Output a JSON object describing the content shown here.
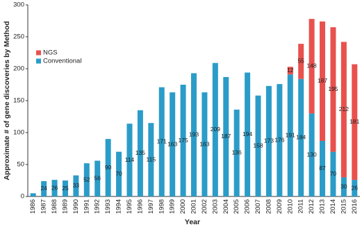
{
  "chart_data": {
    "type": "stacked_bar",
    "x_label": "Year",
    "y_label": "Approximate # of gene discoveries by Method",
    "categories": [
      "1986",
      "1987",
      "1988",
      "1989",
      "1990",
      "1991",
      "1992",
      "1993",
      "1994",
      "1995",
      "1996",
      "1997",
      "1998",
      "1999",
      "2000",
      "2001",
      "2002",
      "2003",
      "2004",
      "2005",
      "2006",
      "2007",
      "2008",
      "2009",
      "2010",
      "2011",
      "2012",
      "2013",
      "2014",
      "2015",
      "2016"
    ],
    "series": [
      {
        "name": "Conventional",
        "color": "#2b9cc8",
        "values": [
          5,
          24,
          26,
          25,
          33,
          52,
          56,
          90,
          70,
          114,
          135,
          115,
          171,
          163,
          175,
          193,
          163,
          209,
          187,
          136,
          194,
          158,
          173,
          176,
          191,
          184,
          130,
          87,
          70,
          30,
          26
        ],
        "value_labels": [
          null,
          "24",
          "26",
          "25",
          "33",
          "52",
          "56",
          "90",
          "70",
          "114",
          "135",
          "115",
          "171",
          "163",
          "175",
          "193",
          "163",
          "209",
          "187",
          "136",
          "194",
          "158",
          "173",
          "176",
          "191",
          "184",
          "130",
          "87",
          "70",
          "30",
          "26"
        ]
      },
      {
        "name": "NGS",
        "color": "#e8514d",
        "values": [
          null,
          null,
          null,
          null,
          null,
          null,
          null,
          null,
          null,
          null,
          null,
          null,
          null,
          null,
          null,
          null,
          null,
          null,
          null,
          null,
          null,
          null,
          null,
          null,
          12,
          55,
          148,
          187,
          195,
          212,
          181
        ]
      }
    ],
    "ylim": [
      0,
      300
    ],
    "yticks": [
      0,
      50,
      100,
      150,
      200,
      250,
      300
    ],
    "grid": false,
    "legend": "upper left"
  }
}
